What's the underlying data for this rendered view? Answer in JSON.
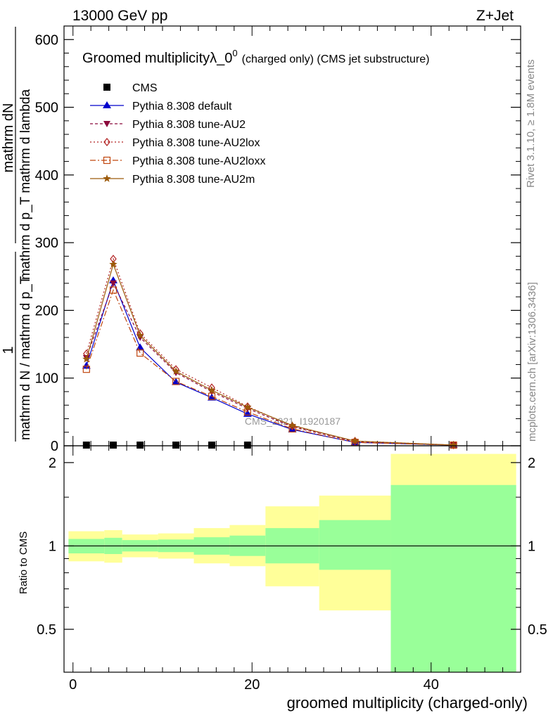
{
  "header": {
    "left_label": "13000 GeV pp",
    "right_label": "Z+Jet"
  },
  "side_labels": {
    "rivet": "Rivet 3.1.10, ≥ 1.8M events",
    "mcplots": "mcplots.cern.ch [arXiv:1306.3436]"
  },
  "watermark": "CMS_2021_I1920187",
  "chart_data": [
    {
      "type": "line",
      "panel": "main",
      "title": "Groomed multiplicityλ_0",
      "title_superscript": "0",
      "subtitle": "(charged only) (CMS jet substructure)",
      "ylabel_numerator": "mathrm dN",
      "ylabel_denominator": "mathrm d p_T mathrm d lambda",
      "ylabel_factor_numerator": "1",
      "ylabel_factor_denominator": "mathrm d N / mathrm d p_T",
      "ylim": [
        0,
        620
      ],
      "xlim": [
        -1,
        50
      ],
      "yticks": [
        0,
        100,
        200,
        300,
        400,
        500,
        600
      ],
      "grid": false,
      "legend_position": "top-left",
      "x": [
        1.5,
        4.5,
        7.5,
        11.5,
        15.5,
        19.5,
        24.5,
        31.5,
        42.5
      ],
      "series": [
        {
          "name": "CMS",
          "color": "#000000",
          "marker": "square",
          "dash": "",
          "values": [
            0,
            0,
            0,
            0,
            0,
            0,
            0,
            0,
            0
          ]
        },
        {
          "name": "Pythia 8.308 default",
          "color": "#0000cc",
          "marker": "triangle-up",
          "dash": "",
          "values": [
            118,
            244,
            145,
            94,
            71,
            47,
            24,
            5,
            1
          ]
        },
        {
          "name": "Pythia 8.308 tune-AU2",
          "color": "#8b0a3c",
          "marker": "triangle-down",
          "dash": "4,3",
          "values": [
            130,
            240,
            160,
            108,
            80,
            55,
            28,
            6,
            1
          ]
        },
        {
          "name": "Pythia 8.308 tune-AU2lox",
          "color": "#b22222",
          "marker": "diamond",
          "dash": "2,3",
          "values": [
            136,
            276,
            166,
            113,
            86,
            58,
            29,
            7,
            1
          ]
        },
        {
          "name": "Pythia 8.308 tune-AU2loxx",
          "color": "#c0470f",
          "marker": "open-square",
          "dash": "8,3,2,3",
          "values": [
            113,
            230,
            137,
            95,
            73,
            50,
            25,
            5,
            1
          ]
        },
        {
          "name": "Pythia 8.308 tune-AU2m",
          "color": "#9c5a0a",
          "marker": "star",
          "dash": "",
          "values": [
            128,
            268,
            163,
            110,
            82,
            57,
            30,
            7,
            1
          ]
        }
      ]
    },
    {
      "type": "area",
      "panel": "ratio",
      "ylabel": "Ratio to CMS",
      "xlabel": "groomed multiplicity (charged-only)",
      "ylim": [
        0.35,
        2.3
      ],
      "yticks": [
        0.5,
        1,
        2
      ],
      "xticks": [
        0,
        20,
        40
      ],
      "xlim": [
        -1,
        50
      ],
      "bins": [
        {
          "lo": -0.5,
          "hi": 3.5,
          "green": [
            0.94,
            1.06
          ],
          "yellow": [
            0.88,
            1.13
          ]
        },
        {
          "lo": 3.5,
          "hi": 5.5,
          "green": [
            0.935,
            1.07
          ],
          "yellow": [
            0.87,
            1.14
          ]
        },
        {
          "lo": 5.5,
          "hi": 9.5,
          "green": [
            0.955,
            1.05
          ],
          "yellow": [
            0.91,
            1.1
          ]
        },
        {
          "lo": 9.5,
          "hi": 13.5,
          "green": [
            0.95,
            1.055
          ],
          "yellow": [
            0.9,
            1.11
          ]
        },
        {
          "lo": 13.5,
          "hi": 17.5,
          "green": [
            0.93,
            1.075
          ],
          "yellow": [
            0.865,
            1.16
          ]
        },
        {
          "lo": 17.5,
          "hi": 21.5,
          "green": [
            0.92,
            1.09
          ],
          "yellow": [
            0.845,
            1.19
          ]
        },
        {
          "lo": 21.5,
          "hi": 27.5,
          "green": [
            0.865,
            1.16
          ],
          "yellow": [
            0.715,
            1.39
          ]
        },
        {
          "lo": 27.5,
          "hi": 35.5,
          "green": [
            0.82,
            1.24
          ],
          "yellow": [
            0.585,
            1.52
          ]
        },
        {
          "lo": 35.5,
          "hi": 49.5,
          "green": [
            0.33,
            1.66
          ],
          "yellow": [
            0.33,
            2.15
          ]
        }
      ],
      "reference_value": 1
    }
  ],
  "colors": {
    "band_inner": "#99ff99",
    "band_outer": "#ffff99",
    "axis": "#000000"
  }
}
